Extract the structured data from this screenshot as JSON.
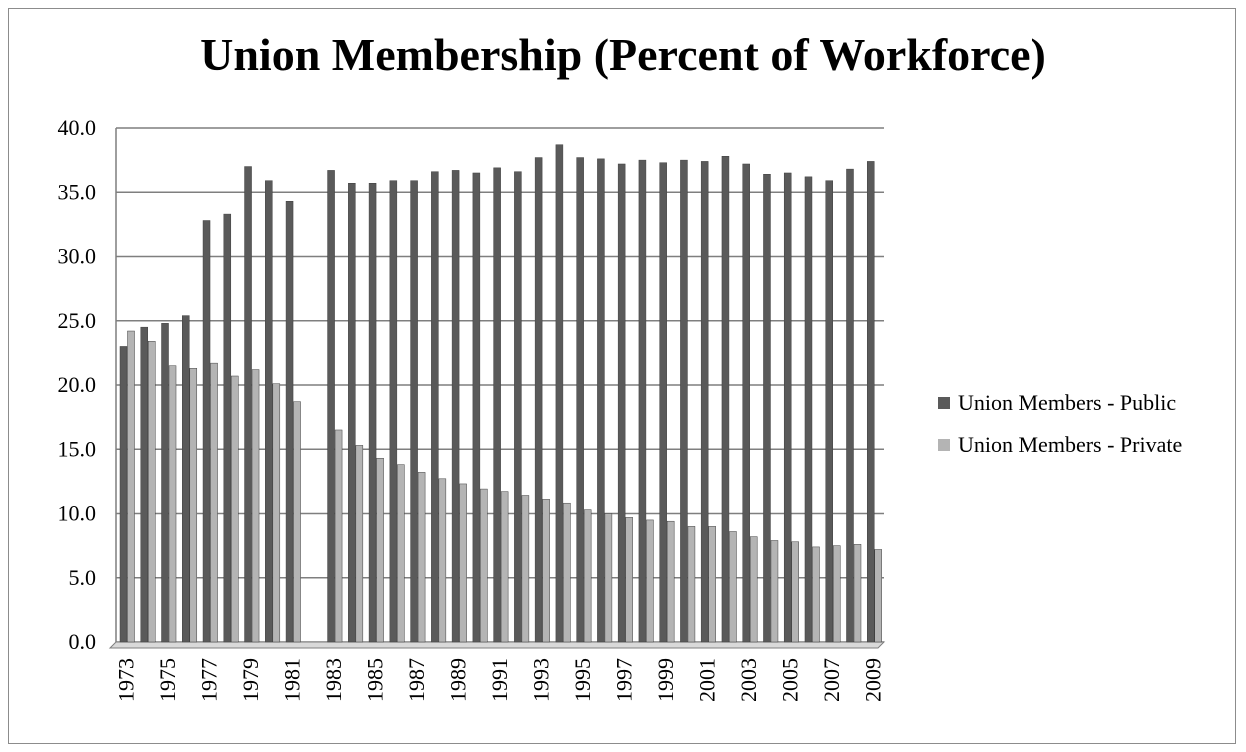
{
  "chart_data": {
    "type": "bar",
    "title": "Union Membership (Percent of Workforce)",
    "xlabel": "",
    "ylabel": "",
    "ylim": [
      0,
      40
    ],
    "yticks": [
      "0.0",
      "5.0",
      "10.0",
      "15.0",
      "20.0",
      "25.0",
      "30.0",
      "35.0",
      "40.0"
    ],
    "grid": true,
    "legend_position": "right",
    "categories": [
      "1973",
      "1974",
      "1975",
      "1976",
      "1977",
      "1978",
      "1979",
      "1980",
      "1981",
      "1982",
      "1983",
      "1984",
      "1985",
      "1986",
      "1987",
      "1988",
      "1989",
      "1990",
      "1991",
      "1992",
      "1993",
      "1994",
      "1995",
      "1996",
      "1997",
      "1998",
      "1999",
      "2000",
      "2001",
      "2002",
      "2003",
      "2004",
      "2005",
      "2006",
      "2007",
      "2008",
      "2009"
    ],
    "x_tick_labels": [
      "1973",
      "1975",
      "1977",
      "1979",
      "1981",
      "1983",
      "1985",
      "1987",
      "1989",
      "1991",
      "1993",
      "1995",
      "1997",
      "1999",
      "2001",
      "2003",
      "2005",
      "2007",
      "2009"
    ],
    "series": [
      {
        "name": "Union Members - Public",
        "color": "#5a5a5a",
        "values": [
          23.0,
          24.5,
          24.8,
          25.4,
          32.8,
          33.3,
          37.0,
          35.9,
          34.3,
          0.0,
          36.7,
          35.7,
          35.7,
          35.9,
          35.9,
          36.6,
          36.7,
          36.5,
          36.9,
          36.6,
          37.7,
          38.7,
          37.7,
          37.6,
          37.2,
          37.5,
          37.3,
          37.5,
          37.4,
          37.8,
          37.2,
          36.4,
          36.5,
          36.2,
          35.9,
          36.8,
          37.4
        ]
      },
      {
        "name": "Union Members - Private",
        "color": "#b4b4b4",
        "values": [
          24.2,
          23.4,
          21.5,
          21.3,
          21.7,
          20.7,
          21.2,
          20.1,
          18.7,
          0.0,
          16.5,
          15.3,
          14.3,
          13.8,
          13.2,
          12.7,
          12.3,
          11.9,
          11.7,
          11.4,
          11.1,
          10.8,
          10.3,
          10.0,
          9.7,
          9.5,
          9.4,
          9.0,
          9.0,
          8.6,
          8.2,
          7.9,
          7.8,
          7.4,
          7.5,
          7.6,
          7.2
        ]
      }
    ]
  }
}
